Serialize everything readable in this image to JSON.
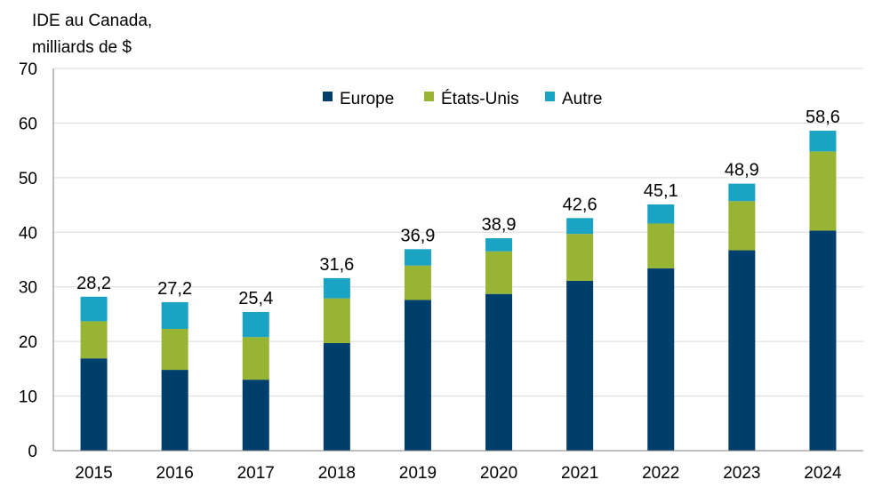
{
  "chart_data": {
    "type": "bar",
    "stacked": true,
    "ylabel_lines": [
      "IDE au Canada,",
      "milliards de $"
    ],
    "categories": [
      "2015",
      "2016",
      "2017",
      "2018",
      "2019",
      "2020",
      "2021",
      "2022",
      "2023",
      "2024"
    ],
    "series": [
      {
        "name": "Europe",
        "color": "#003f6b",
        "values": [
          16.9,
          14.8,
          13.0,
          19.7,
          27.6,
          28.7,
          31.1,
          33.4,
          36.7,
          40.3
        ]
      },
      {
        "name": "États-Unis",
        "color": "#98b434",
        "values": [
          6.8,
          7.5,
          7.8,
          8.2,
          6.3,
          7.8,
          8.6,
          8.2,
          9.0,
          14.5
        ]
      },
      {
        "name": "Autre",
        "color": "#1aa3c2",
        "values": [
          4.5,
          4.9,
          4.6,
          3.7,
          3.0,
          2.4,
          2.9,
          3.5,
          3.2,
          3.8
        ]
      }
    ],
    "totals": [
      "28,2",
      "27,2",
      "25,4",
      "31,6",
      "36,9",
      "38,9",
      "42,6",
      "45,1",
      "48,9",
      "58,6"
    ],
    "ylim": [
      0,
      70
    ],
    "yticks": [
      0,
      10,
      20,
      30,
      40,
      50,
      60,
      70
    ],
    "grid": true,
    "legend_position": "top-center"
  }
}
